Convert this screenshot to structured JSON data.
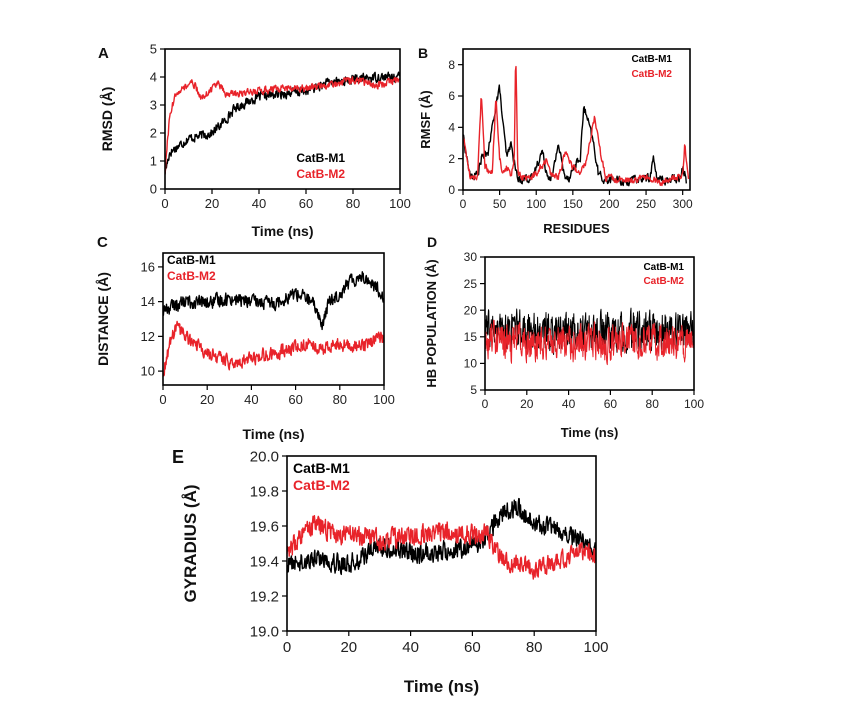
{
  "colors": {
    "m1": "#000000",
    "m2": "#e8232a"
  },
  "chart_data": [
    {
      "id": "A",
      "type": "line",
      "panel_label": "A",
      "xlabel": "Time (ns)",
      "ylabel": "RMSD (Å)",
      "xlim": [
        0,
        100
      ],
      "ylim": [
        0,
        5
      ],
      "xticks": [
        0,
        20,
        40,
        60,
        80,
        100
      ],
      "yticks": [
        0,
        1,
        2,
        3,
        4,
        5
      ],
      "legend": [
        "CatB-M1",
        "CatB-M2"
      ],
      "legend_position": "bottom-right",
      "series": [
        {
          "name": "CatB-M1",
          "x": [
            0,
            2,
            5,
            10,
            15,
            20,
            25,
            30,
            35,
            40,
            50,
            60,
            70,
            80,
            90,
            100
          ],
          "values": [
            0.6,
            1.3,
            1.5,
            1.8,
            1.9,
            2.0,
            2.4,
            2.9,
            3.1,
            3.3,
            3.4,
            3.5,
            3.8,
            3.9,
            4.0,
            4.0
          ],
          "noise": 0.15
        },
        {
          "name": "CatB-M2",
          "x": [
            0,
            2,
            5,
            8,
            12,
            15,
            18,
            22,
            26,
            30,
            40,
            50,
            60,
            70,
            80,
            90,
            100
          ],
          "values": [
            0.6,
            2.6,
            3.5,
            3.6,
            3.8,
            3.3,
            3.4,
            3.8,
            3.4,
            3.4,
            3.5,
            3.6,
            3.6,
            3.7,
            3.9,
            3.7,
            3.9
          ],
          "noise": 0.12
        }
      ]
    },
    {
      "id": "B",
      "type": "line",
      "panel_label": "B",
      "xlabel": "RESIDUES",
      "ylabel": "RMSF (Å)",
      "xlim": [
        0,
        310
      ],
      "ylim": [
        0,
        9
      ],
      "xticks": [
        0,
        50,
        100,
        150,
        200,
        250,
        300
      ],
      "yticks": [
        0,
        2,
        4,
        6,
        8
      ],
      "legend": [
        "CatB-M1",
        "CatB-M2"
      ],
      "legend_position": "top-right",
      "series": [
        {
          "name": "CatB-M1",
          "x": [
            0,
            10,
            20,
            25,
            35,
            45,
            50,
            55,
            60,
            65,
            75,
            85,
            95,
            100,
            108,
            115,
            122,
            130,
            138,
            145,
            152,
            160,
            165,
            170,
            178,
            185,
            195,
            205,
            220,
            240,
            255,
            260,
            265,
            280,
            295,
            300,
            305
          ],
          "values": [
            3.5,
            0.8,
            1.0,
            2.0,
            2.5,
            5.5,
            6.5,
            4.0,
            2.0,
            3.0,
            0.6,
            0.8,
            0.7,
            1.5,
            2.5,
            1.0,
            0.8,
            3.0,
            1.0,
            0.8,
            1.5,
            2.0,
            5.3,
            4.5,
            3.0,
            1.0,
            0.6,
            0.7,
            0.5,
            0.7,
            0.8,
            2.0,
            0.7,
            0.6,
            0.8,
            1.5,
            0.6
          ],
          "noise": 0.25
        },
        {
          "name": "CatB-M2",
          "x": [
            0,
            10,
            20,
            25,
            30,
            40,
            45,
            50,
            55,
            60,
            65,
            70,
            72,
            75,
            85,
            100,
            115,
            120,
            130,
            140,
            150,
            160,
            170,
            175,
            180,
            185,
            195,
            210,
            230,
            250,
            270,
            290,
            300,
            303,
            308
          ],
          "values": [
            3.5,
            0.8,
            0.8,
            6.2,
            1.5,
            1.0,
            6.0,
            2.0,
            1.0,
            1.5,
            0.8,
            2.0,
            8.7,
            1.0,
            0.7,
            1.0,
            2.0,
            1.0,
            0.8,
            2.5,
            1.5,
            1.0,
            2.0,
            3.5,
            4.8,
            3.0,
            0.8,
            0.7,
            0.6,
            0.8,
            0.5,
            0.8,
            1.0,
            3.0,
            0.6
          ],
          "noise": 0.2
        }
      ]
    },
    {
      "id": "C",
      "type": "line",
      "panel_label": "C",
      "xlabel": "Time (ns)",
      "ylabel": "DISTANCE (Å)",
      "xlim": [
        0,
        100
      ],
      "ylim": [
        9.2,
        16.8
      ],
      "xticks": [
        0,
        20,
        40,
        60,
        80,
        100
      ],
      "yticks": [
        10,
        12,
        14,
        16
      ],
      "legend": [
        "CatB-M1",
        "CatB-M2"
      ],
      "legend_position": "top-left",
      "series": [
        {
          "name": "CatB-M1",
          "x": [
            0,
            5,
            10,
            20,
            30,
            40,
            50,
            60,
            65,
            70,
            72,
            75,
            80,
            85,
            90,
            95,
            100
          ],
          "values": [
            13.5,
            13.8,
            14.0,
            13.9,
            14.2,
            14.0,
            13.9,
            14.5,
            14.2,
            13.5,
            12.5,
            14.0,
            14.5,
            15.2,
            15.5,
            15.0,
            14.3
          ],
          "noise": 0.35
        },
        {
          "name": "CatB-M2",
          "x": [
            0,
            3,
            6,
            10,
            15,
            20,
            25,
            30,
            35,
            40,
            45,
            50,
            60,
            65,
            70,
            80,
            90,
            95,
            100
          ],
          "values": [
            9.8,
            11.5,
            12.5,
            12.0,
            11.5,
            11.0,
            10.8,
            10.5,
            10.6,
            10.7,
            10.9,
            11.0,
            11.4,
            11.6,
            11.3,
            11.5,
            11.4,
            11.7,
            12.0
          ],
          "noise": 0.35
        }
      ]
    },
    {
      "id": "D",
      "type": "line",
      "panel_label": "D",
      "xlabel": "Time (ns)",
      "ylabel": "HB POPULATION (Å)",
      "xlim": [
        0,
        100
      ],
      "ylim": [
        5,
        30
      ],
      "xticks": [
        0,
        20,
        40,
        60,
        80,
        100
      ],
      "yticks": [
        5,
        10,
        15,
        20,
        25,
        30
      ],
      "legend": [
        "CatB-M1",
        "CatB-M2"
      ],
      "legend_position": "top-right",
      "series": [
        {
          "name": "CatB-M1",
          "x": [
            0,
            100
          ],
          "values": [
            16,
            16
          ],
          "noise": 3.2
        },
        {
          "name": "CatB-M2",
          "x": [
            0,
            100
          ],
          "values": [
            14,
            14
          ],
          "noise": 3.0
        }
      ]
    },
    {
      "id": "E",
      "type": "line",
      "panel_label": "E",
      "xlabel": "Time (ns)",
      "ylabel": "GYRADIUS (Å)",
      "xlim": [
        0,
        100
      ],
      "ylim": [
        19.0,
        20.0
      ],
      "xticks": [
        0,
        20,
        40,
        60,
        80,
        100
      ],
      "yticks": [
        19.0,
        19.2,
        19.4,
        19.6,
        19.8,
        20.0
      ],
      "legend": [
        "CatB-M1",
        "CatB-M2"
      ],
      "legend_position": "top-left",
      "series": [
        {
          "name": "CatB-M1",
          "x": [
            0,
            10,
            20,
            30,
            40,
            50,
            60,
            65,
            70,
            75,
            80,
            85,
            90,
            95,
            100
          ],
          "values": [
            19.38,
            19.42,
            19.38,
            19.48,
            19.45,
            19.45,
            19.48,
            19.55,
            19.68,
            19.7,
            19.62,
            19.58,
            19.55,
            19.52,
            19.45
          ],
          "noise": 0.05
        },
        {
          "name": "CatB-M2",
          "x": [
            0,
            5,
            10,
            15,
            20,
            30,
            40,
            50,
            60,
            65,
            70,
            75,
            80,
            85,
            90,
            95,
            100
          ],
          "values": [
            19.45,
            19.55,
            19.62,
            19.55,
            19.55,
            19.52,
            19.55,
            19.57,
            19.55,
            19.55,
            19.4,
            19.38,
            19.35,
            19.38,
            19.42,
            19.45,
            19.42
          ],
          "noise": 0.05
        }
      ]
    }
  ]
}
